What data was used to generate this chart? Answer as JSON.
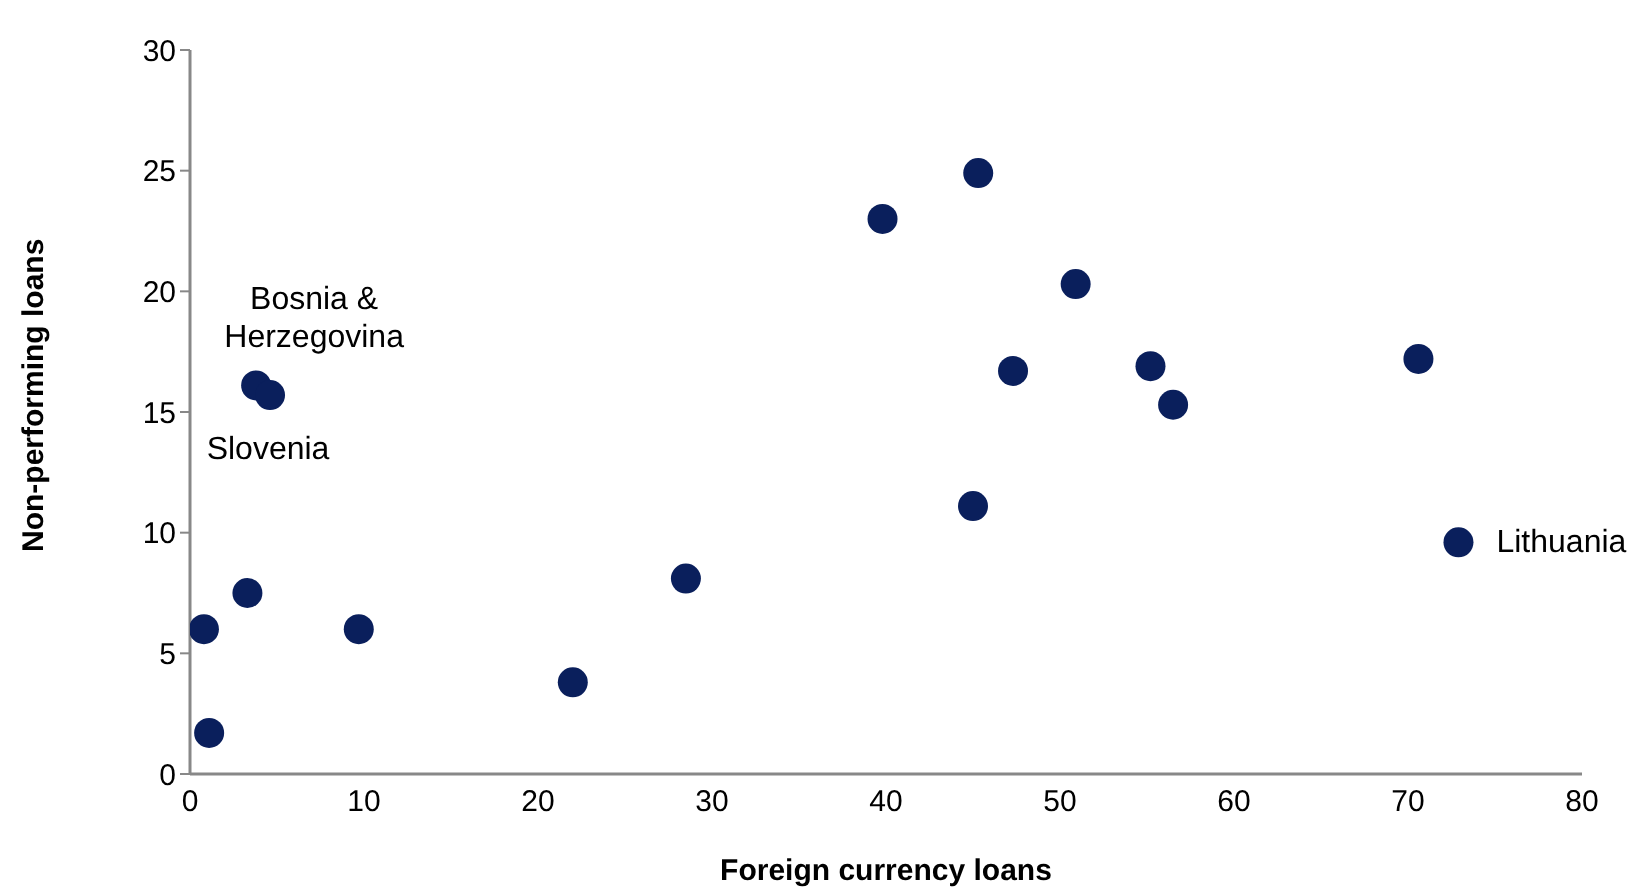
{
  "chart_data": {
    "type": "scatter",
    "xlabel": "Foreign currency loans",
    "ylabel": "Non-performing loans",
    "xlim": [
      0,
      80
    ],
    "xticks": [
      0,
      10,
      20,
      30,
      40,
      50,
      60,
      70,
      80
    ],
    "ylim": [
      0,
      30
    ],
    "yticks": [
      0,
      5,
      10,
      15,
      20,
      25,
      30
    ],
    "grid": false,
    "legend": false,
    "marker": "circle",
    "series": [
      {
        "color": "#0a1f5c",
        "x": [
          0.8,
          1.1,
          3.3,
          3.8,
          4.6,
          9.7,
          22.0,
          28.5,
          39.8,
          45.3,
          50.9,
          47.3,
          55.2,
          56.5,
          70.6,
          45.0,
          72.9
        ],
        "values": [
          6.0,
          1.7,
          7.5,
          16.1,
          15.7,
          6.0,
          3.8,
          8.1,
          23.0,
          24.9,
          20.3,
          16.7,
          16.9,
          15.3,
          17.2,
          11.1,
          9.6
        ]
      }
    ],
    "annotations": [
      {
        "text": "Bosnia & Herzegovina",
        "x": 3.8,
        "y": 16.1
      },
      {
        "text": "Slovenia",
        "x": 4.6,
        "y": 15.7
      },
      {
        "text": "Lithuania",
        "x": 72.9,
        "y": 9.6
      }
    ]
  }
}
